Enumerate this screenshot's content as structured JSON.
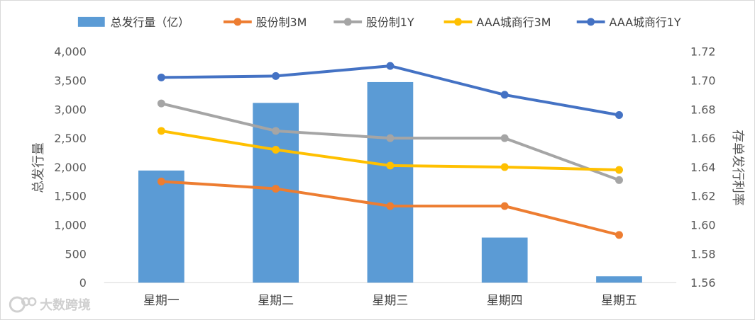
{
  "chart_data": {
    "type": "bar+line",
    "categories": [
      "星期一",
      "星期二",
      "星期三",
      "星期四",
      "星期五"
    ],
    "left_axis": {
      "label": "总发行量",
      "ylim": [
        0,
        4000
      ],
      "ticks": [
        "0",
        "500",
        "1,000",
        "1,500",
        "2,000",
        "2,500",
        "3,000",
        "3,500",
        "4,000"
      ],
      "tick_values": [
        0,
        500,
        1000,
        1500,
        2000,
        2500,
        3000,
        3500,
        4000
      ]
    },
    "right_axis": {
      "label": "存单发行利率",
      "ylim": [
        1.56,
        1.72
      ],
      "ticks": [
        "1.56",
        "1.58",
        "1.60",
        "1.62",
        "1.64",
        "1.66",
        "1.68",
        "1.70",
        "1.72"
      ],
      "tick_values": [
        1.56,
        1.58,
        1.6,
        1.62,
        1.64,
        1.66,
        1.68,
        1.7,
        1.72
      ]
    },
    "bar_series": {
      "name": "总发行量（亿）",
      "color": "#5B9BD5",
      "values": [
        1940,
        3110,
        3470,
        780,
        110
      ]
    },
    "line_series": [
      {
        "name": "股份制3M",
        "color": "#ED7D31",
        "values": [
          1.63,
          1.625,
          1.613,
          1.613,
          1.593
        ]
      },
      {
        "name": "股份制1Y",
        "color": "#A5A5A5",
        "values": [
          1.684,
          1.665,
          1.66,
          1.66,
          1.631
        ]
      },
      {
        "name": "AAA城商行3M",
        "color": "#FFC000",
        "values": [
          1.665,
          1.652,
          1.641,
          1.64,
          1.638
        ]
      },
      {
        "name": "AAA城商行1Y",
        "color": "#4472C4",
        "values": [
          1.702,
          1.703,
          1.71,
          1.69,
          1.676
        ]
      }
    ],
    "legend_position": "top",
    "grid": false
  },
  "watermark": {
    "text": "大数跨境",
    "icon": "logo-icon"
  }
}
